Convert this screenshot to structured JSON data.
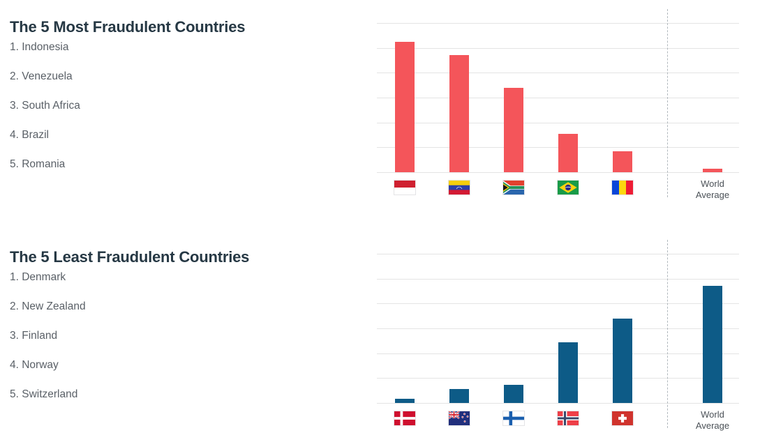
{
  "sections": [
    {
      "title": "The 5 Most Fraudulent Countries",
      "list": [
        "1. Indonesia",
        "2. Venezuela",
        "3. South Africa",
        "4. Brazil",
        "5. Romania"
      ]
    },
    {
      "title": "The 5 Least Fraudulent Countries",
      "list": [
        "1. Denmark",
        "2. New Zealand",
        "3. Finland",
        "4. Norway",
        "5. Switzerland"
      ]
    }
  ],
  "chart_data": [
    {
      "type": "bar",
      "title": "The 5 Most Fraudulent Countries",
      "categories": [
        "Indonesia",
        "Venezuela",
        "South Africa",
        "Brazil",
        "Romania",
        "World Average"
      ],
      "values": [
        5.25,
        4.7,
        3.4,
        1.55,
        0.85,
        0.15
      ],
      "flags": [
        "indonesia",
        "venezuela",
        "south-africa",
        "brazil",
        "romania",
        null
      ],
      "bar_color": "#f4555a",
      "ylim": [
        0,
        6.6
      ],
      "gridline_interval": 1,
      "grid": true,
      "xlabel": "",
      "ylabel": "",
      "legend": "none",
      "world_average_separated_by_dashed_line": true
    },
    {
      "type": "bar",
      "title": "The 5 Least Fraudulent Countries",
      "categories": [
        "Denmark",
        "New Zealand",
        "Finland",
        "Norway",
        "Switzerland",
        "World Average"
      ],
      "values": [
        0.17,
        0.55,
        0.72,
        2.43,
        3.4,
        4.7
      ],
      "flags": [
        "denmark",
        "new-zealand",
        "finland",
        "norway",
        "switzerland",
        null
      ],
      "bar_color": "#0d5b87",
      "ylim": [
        0,
        6.6
      ],
      "gridline_interval": 1,
      "grid": true,
      "xlabel": "",
      "ylabel": "",
      "legend": "none",
      "world_average_separated_by_dashed_line": true
    }
  ],
  "colors": {
    "most_fraudulent_bar": "#f4555a",
    "least_fraudulent_bar": "#0d5b87",
    "title_text": "#263844",
    "list_text": "#5a6067",
    "gridline": "#e4e4e4",
    "dashed_separator": "#b1b8bd"
  }
}
